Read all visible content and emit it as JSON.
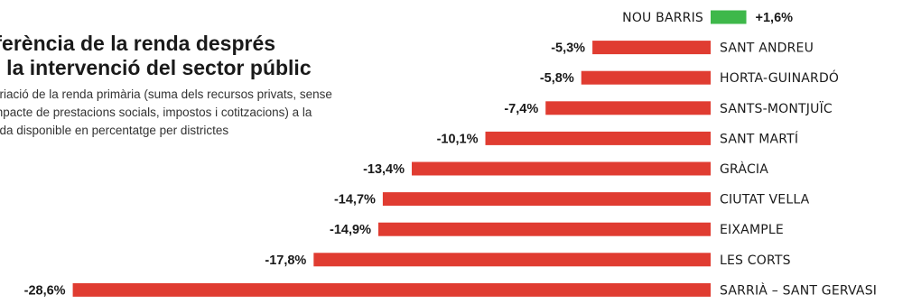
{
  "title_lines": [
    "iferència de la renda després",
    "e la intervenció del sector públic"
  ],
  "subtitle_lines": [
    "ariació de la renda primària (suma dels recursos privats, sense",
    "mpacte de prestacions socials, impostos i cotitzacions) a la",
    "nda disponible en percentatge per districtes"
  ],
  "colors": {
    "negative": "#e03c31",
    "positive": "#3eb84a",
    "text": "#1a1a1a"
  },
  "chart_data": {
    "type": "bar",
    "orientation": "horizontal",
    "categories": [
      "NOU BARRIS",
      "SANT ANDREU",
      "HORTA-GUINARDÓ",
      "SANTS-MONTJUÏC",
      "SANT MARTÍ",
      "GRÀCIA",
      "CIUTAT VELLA",
      "EIXAMPLE",
      "LES CORTS",
      "SARRIÀ – SANT GERVASI"
    ],
    "values": [
      1.6,
      -5.3,
      -5.8,
      -7.4,
      -10.1,
      -13.4,
      -14.7,
      -14.9,
      -17.8,
      -28.6
    ],
    "value_labels": [
      "+1,6%",
      "-5,3%",
      "-5,8%",
      "-7,4%",
      "-10,1%",
      "-13,4%",
      "-14,7%",
      "-14,9%",
      "-17,8%",
      "-28,6%"
    ],
    "title": "iferència de la renda després e la intervenció del sector públic",
    "xlabel": "",
    "ylabel": ""
  }
}
